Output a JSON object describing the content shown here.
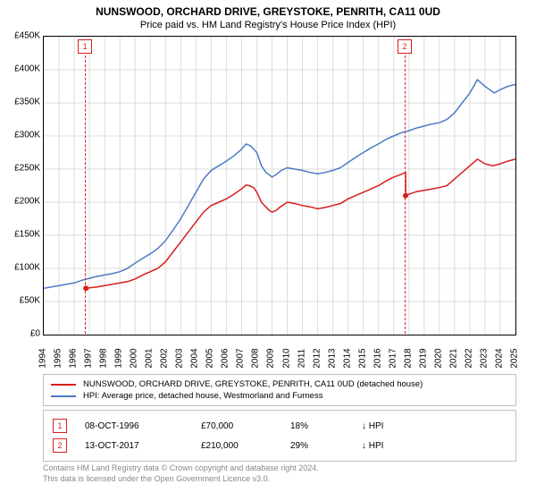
{
  "title": "NUNSWOOD, ORCHARD DRIVE, GREYSTOKE, PENRITH, CA11 0UD",
  "subtitle": "Price paid vs. HM Land Registry's House Price Index (HPI)",
  "chart": {
    "type": "line",
    "background_color": "#ffffff",
    "grid_color": "#dcdcdc",
    "border_color": "#000000",
    "x": {
      "min": 1994,
      "max": 2025,
      "ticks": [
        1994,
        1995,
        1996,
        1997,
        1998,
        1999,
        2000,
        2001,
        2002,
        2003,
        2004,
        2005,
        2006,
        2007,
        2008,
        2009,
        2010,
        2011,
        2012,
        2013,
        2014,
        2015,
        2016,
        2017,
        2018,
        2019,
        2020,
        2021,
        2022,
        2023,
        2024,
        2025
      ]
    },
    "y": {
      "min": 0,
      "max": 450000,
      "ticks": [
        {
          "v": 0,
          "label": "£0"
        },
        {
          "v": 50000,
          "label": "£50K"
        },
        {
          "v": 100000,
          "label": "£100K"
        },
        {
          "v": 150000,
          "label": "£150K"
        },
        {
          "v": 200000,
          "label": "£200K"
        },
        {
          "v": 250000,
          "label": "£250K"
        },
        {
          "v": 300000,
          "label": "£300K"
        },
        {
          "v": 350000,
          "label": "£350K"
        },
        {
          "v": 400000,
          "label": "£400K"
        },
        {
          "v": 450000,
          "label": "£450K"
        }
      ]
    },
    "series": [
      {
        "name": "property",
        "label": "NUNSWOOD, ORCHARD DRIVE, GREYSTOKE, PENRITH, CA11 0UD (detached house)",
        "color": "#d81e1e",
        "width": 1.5,
        "points": [
          [
            1996.8,
            70000
          ],
          [
            1997.0,
            70500
          ],
          [
            1997.5,
            72000
          ],
          [
            1998.0,
            74000
          ],
          [
            1998.5,
            76000
          ],
          [
            1999.0,
            78000
          ],
          [
            1999.5,
            80000
          ],
          [
            2000.0,
            84000
          ],
          [
            2000.5,
            90000
          ],
          [
            2001.0,
            95000
          ],
          [
            2001.5,
            100000
          ],
          [
            2002.0,
            110000
          ],
          [
            2002.5,
            125000
          ],
          [
            2003.0,
            140000
          ],
          [
            2003.5,
            155000
          ],
          [
            2004.0,
            170000
          ],
          [
            2004.5,
            185000
          ],
          [
            2005.0,
            195000
          ],
          [
            2005.5,
            200000
          ],
          [
            2006.0,
            205000
          ],
          [
            2006.5,
            212000
          ],
          [
            2007.0,
            220000
          ],
          [
            2007.3,
            226000
          ],
          [
            2007.5,
            225000
          ],
          [
            2007.8,
            222000
          ],
          [
            2008.0,
            215000
          ],
          [
            2008.3,
            200000
          ],
          [
            2008.5,
            195000
          ],
          [
            2008.8,
            188000
          ],
          [
            2009.0,
            185000
          ],
          [
            2009.3,
            188000
          ],
          [
            2009.5,
            192000
          ],
          [
            2010.0,
            200000
          ],
          [
            2010.5,
            198000
          ],
          [
            2011.0,
            195000
          ],
          [
            2011.5,
            193000
          ],
          [
            2012.0,
            190000
          ],
          [
            2012.5,
            192000
          ],
          [
            2013.0,
            195000
          ],
          [
            2013.5,
            198000
          ],
          [
            2014.0,
            205000
          ],
          [
            2014.5,
            210000
          ],
          [
            2015.0,
            215000
          ],
          [
            2015.5,
            220000
          ],
          [
            2016.0,
            225000
          ],
          [
            2016.5,
            232000
          ],
          [
            2017.0,
            238000
          ],
          [
            2017.5,
            242000
          ],
          [
            2017.78,
            245000
          ],
          [
            2017.79,
            210000
          ],
          [
            2018.0,
            212000
          ],
          [
            2018.5,
            216000
          ],
          [
            2019.0,
            218000
          ],
          [
            2019.5,
            220000
          ],
          [
            2020.0,
            222000
          ],
          [
            2020.5,
            225000
          ],
          [
            2021.0,
            235000
          ],
          [
            2021.5,
            245000
          ],
          [
            2022.0,
            255000
          ],
          [
            2022.5,
            265000
          ],
          [
            2023.0,
            258000
          ],
          [
            2023.5,
            255000
          ],
          [
            2024.0,
            258000
          ],
          [
            2024.5,
            262000
          ],
          [
            2025.0,
            265000
          ]
        ]
      },
      {
        "name": "hpi",
        "label": "HPI: Average price, detached house, Westmorland and Furness",
        "color": "#4b7cc5",
        "width": 1.5,
        "points": [
          [
            1994.0,
            70000
          ],
          [
            1994.5,
            72000
          ],
          [
            1995.0,
            74000
          ],
          [
            1995.5,
            76000
          ],
          [
            1996.0,
            78000
          ],
          [
            1996.5,
            82000
          ],
          [
            1997.0,
            85000
          ],
          [
            1997.5,
            88000
          ],
          [
            1998.0,
            90000
          ],
          [
            1998.5,
            92000
          ],
          [
            1999.0,
            95000
          ],
          [
            1999.5,
            100000
          ],
          [
            2000.0,
            108000
          ],
          [
            2000.5,
            115000
          ],
          [
            2001.0,
            122000
          ],
          [
            2001.5,
            130000
          ],
          [
            2002.0,
            142000
          ],
          [
            2002.5,
            158000
          ],
          [
            2003.0,
            175000
          ],
          [
            2003.5,
            195000
          ],
          [
            2004.0,
            215000
          ],
          [
            2004.5,
            235000
          ],
          [
            2005.0,
            248000
          ],
          [
            2005.5,
            255000
          ],
          [
            2006.0,
            262000
          ],
          [
            2006.5,
            270000
          ],
          [
            2007.0,
            280000
          ],
          [
            2007.3,
            288000
          ],
          [
            2007.6,
            285000
          ],
          [
            2008.0,
            275000
          ],
          [
            2008.3,
            255000
          ],
          [
            2008.6,
            245000
          ],
          [
            2009.0,
            238000
          ],
          [
            2009.3,
            242000
          ],
          [
            2009.6,
            248000
          ],
          [
            2010.0,
            252000
          ],
          [
            2010.5,
            250000
          ],
          [
            2011.0,
            248000
          ],
          [
            2011.5,
            245000
          ],
          [
            2012.0,
            243000
          ],
          [
            2012.5,
            245000
          ],
          [
            2013.0,
            248000
          ],
          [
            2013.5,
            252000
          ],
          [
            2014.0,
            260000
          ],
          [
            2014.5,
            268000
          ],
          [
            2015.0,
            275000
          ],
          [
            2015.5,
            282000
          ],
          [
            2016.0,
            288000
          ],
          [
            2016.5,
            295000
          ],
          [
            2017.0,
            300000
          ],
          [
            2017.5,
            305000
          ],
          [
            2018.0,
            308000
          ],
          [
            2018.5,
            312000
          ],
          [
            2019.0,
            315000
          ],
          [
            2019.5,
            318000
          ],
          [
            2020.0,
            320000
          ],
          [
            2020.5,
            325000
          ],
          [
            2021.0,
            335000
          ],
          [
            2021.5,
            350000
          ],
          [
            2022.0,
            365000
          ],
          [
            2022.5,
            385000
          ],
          [
            2023.0,
            375000
          ],
          [
            2023.3,
            370000
          ],
          [
            2023.6,
            365000
          ],
          [
            2024.0,
            370000
          ],
          [
            2024.5,
            375000
          ],
          [
            2025.0,
            378000
          ]
        ]
      }
    ],
    "sale_points": [
      {
        "x": 1996.77,
        "y": 70000,
        "color": "#d81e1e"
      },
      {
        "x": 2017.78,
        "y": 210000,
        "color": "#d81e1e"
      }
    ],
    "markers": [
      {
        "num": "1",
        "x": 1996.77,
        "color": "#d81e1e",
        "date": "08-OCT-1996",
        "price": "£70,000",
        "pct": "18%",
        "dir": "↓ HPI"
      },
      {
        "num": "2",
        "x": 2017.78,
        "color": "#d81e1e",
        "date": "13-OCT-2017",
        "price": "£210,000",
        "pct": "29%",
        "dir": "↓ HPI"
      }
    ]
  },
  "footer": {
    "line1": "Contains HM Land Registry data © Crown copyright and database right 2024.",
    "line2": "This data is licensed under the Open Government Licence v3.0."
  }
}
